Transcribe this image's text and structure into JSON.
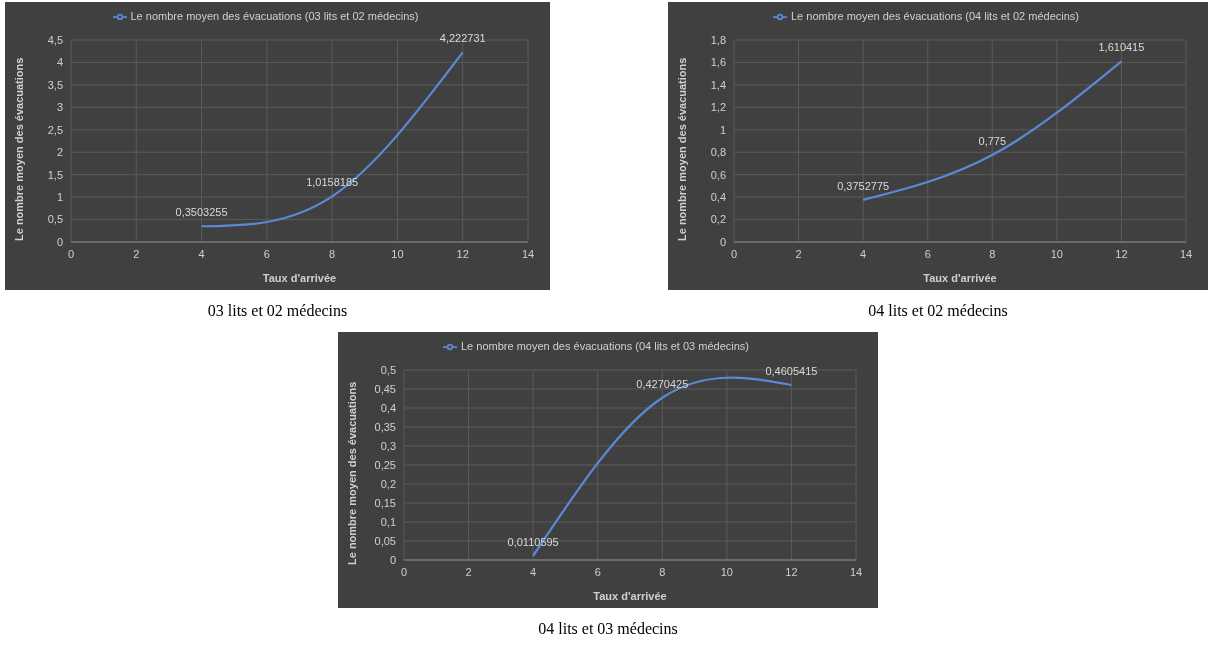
{
  "chart_data": [
    {
      "type": "line",
      "xlabel": "Taux d'arrivée",
      "ylabel": "Le nombre moyen des évacuations",
      "legend": "top",
      "grid": true,
      "marker": "none",
      "x": [
        4,
        8,
        12
      ],
      "xlim": [
        0,
        14
      ],
      "xticks": [
        0,
        2,
        4,
        6,
        8,
        10,
        12,
        14
      ],
      "ylim": [
        0,
        4.5
      ],
      "yticks": [
        0,
        {
          "value": 0.5,
          "label": "0,5"
        },
        1,
        {
          "value": 1.5,
          "label": "1,5"
        },
        2,
        {
          "value": 2.5,
          "label": "2,5"
        },
        3,
        {
          "value": 3.5,
          "label": "3,5"
        },
        4,
        {
          "value": 4.5,
          "label": "4,5"
        }
      ],
      "series": [
        {
          "name": "Le nombre moyen des évacuations (03 lits et 02 médecins)",
          "color": "#5a8ad6",
          "values": [
            0.3503255,
            1.0158185,
            4.222731
          ],
          "value_labels": [
            "0,3503255",
            "1,0158185",
            "4,222731"
          ]
        }
      ],
      "annotations": [
        "03 lits et 02 médecins"
      ]
    },
    {
      "type": "line",
      "xlabel": "Taux d'arrivée",
      "ylabel": "Le nombre moyen des évacuations",
      "legend": "top",
      "grid": true,
      "marker": "none",
      "x": [
        4,
        8,
        12
      ],
      "xlim": [
        0,
        14
      ],
      "xticks": [
        0,
        2,
        4,
        6,
        8,
        10,
        12,
        14
      ],
      "ylim": [
        0,
        1.8
      ],
      "yticks": [
        0,
        {
          "value": 0.2,
          "label": "0,2"
        },
        {
          "value": 0.4,
          "label": "0,4"
        },
        {
          "value": 0.6,
          "label": "0,6"
        },
        {
          "value": 0.8,
          "label": "0,8"
        },
        1,
        {
          "value": 1.2,
          "label": "1,2"
        },
        {
          "value": 1.4,
          "label": "1,4"
        },
        {
          "value": 1.6,
          "label": "1,6"
        },
        {
          "value": 1.8,
          "label": "1,8"
        }
      ],
      "series": [
        {
          "name": "Le nombre moyen des évacuations (04 lits et 02 médecins)",
          "color": "#5a8ad6",
          "values": [
            0.3752775,
            0.775,
            1.610415
          ],
          "value_labels": [
            "0,3752775",
            "0,775",
            "1,610415"
          ]
        }
      ],
      "annotations": [
        "04 lits et 02 médecins"
      ]
    },
    {
      "type": "line",
      "xlabel": "Taux d'arrivée",
      "ylabel": "Le nombre moyen des évacuations",
      "legend": "top",
      "grid": true,
      "marker": "none",
      "x": [
        4,
        8,
        12
      ],
      "xlim": [
        0,
        14
      ],
      "xticks": [
        0,
        2,
        4,
        6,
        8,
        10,
        12,
        14
      ],
      "ylim": [
        0,
        0.5
      ],
      "yticks": [
        0,
        {
          "value": 0.05,
          "label": "0,05"
        },
        {
          "value": 0.1,
          "label": "0,1"
        },
        {
          "value": 0.15,
          "label": "0,15"
        },
        {
          "value": 0.2,
          "label": "0,2"
        },
        {
          "value": 0.25,
          "label": "0,25"
        },
        {
          "value": 0.3,
          "label": "0,3"
        },
        {
          "value": 0.35,
          "label": "0,35"
        },
        {
          "value": 0.4,
          "label": "0,4"
        },
        {
          "value": 0.45,
          "label": "0,45"
        },
        {
          "value": 0.5,
          "label": "0,5"
        }
      ],
      "series": [
        {
          "name": "Le nombre moyen des évacuations (04 lits et 03 médecins)",
          "color": "#5a8ad6",
          "values": [
            0.0110595,
            0.4270425,
            0.4605415
          ],
          "value_labels": [
            "0,0110595",
            "0,4270425",
            "0,4605415"
          ]
        }
      ],
      "annotations": [
        "04 lits et 03 médecins"
      ]
    }
  ]
}
